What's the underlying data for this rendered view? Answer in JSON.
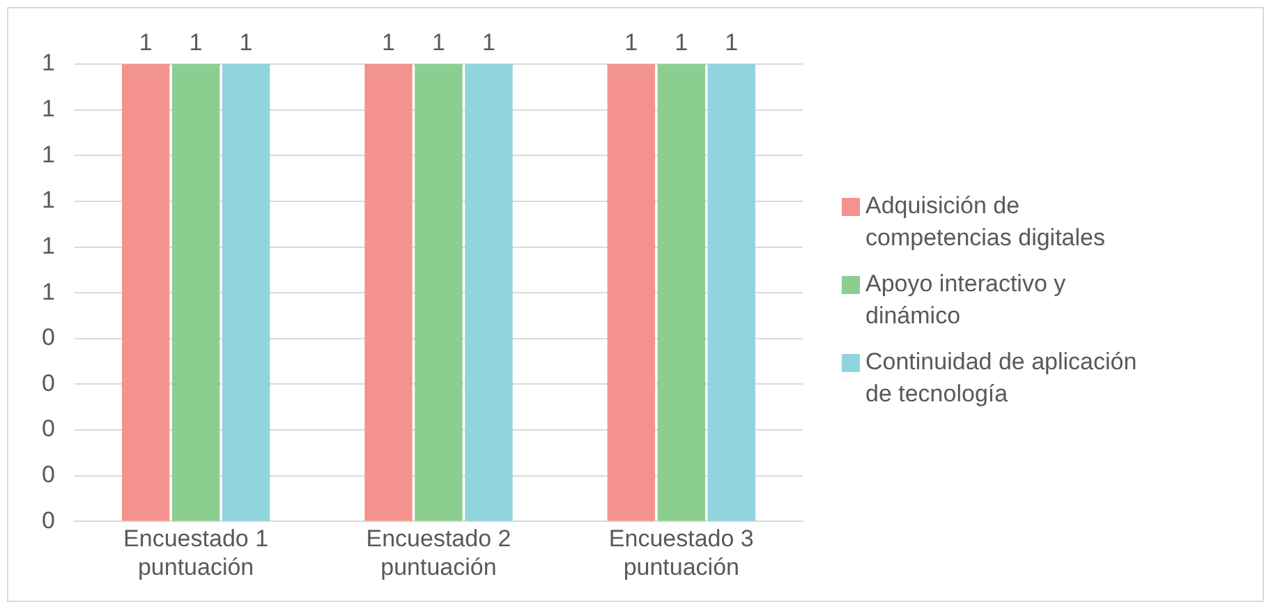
{
  "chart_data": {
    "type": "bar",
    "categories": [
      "Encuestado 1 puntuación",
      "Encuestado 2 puntuación",
      "Encuestado 3 puntuación"
    ],
    "series": [
      {
        "name": "Adquisición de competencias digitales",
        "color": "#f4938d",
        "values": [
          1,
          1,
          1
        ]
      },
      {
        "name": "Apoyo interactivo y dinámico",
        "color": "#8cce90",
        "values": [
          1,
          1,
          1
        ]
      },
      {
        "name": "Continuidad de aplicación de tecnología",
        "color": "#90d4dd",
        "values": [
          1,
          1,
          1
        ]
      }
    ],
    "ylim": [
      0,
      1
    ],
    "yticks": [
      {
        "value": 0,
        "label": "0"
      },
      {
        "value": 0.1,
        "label": "0"
      },
      {
        "value": 0.2,
        "label": "0"
      },
      {
        "value": 0.3,
        "label": "0"
      },
      {
        "value": 0.4,
        "label": "0"
      },
      {
        "value": 0.5,
        "label": "1"
      },
      {
        "value": 0.6,
        "label": "1"
      },
      {
        "value": 0.7,
        "label": "1"
      },
      {
        "value": 0.8,
        "label": "1"
      },
      {
        "value": 0.9,
        "label": "1"
      },
      {
        "value": 1,
        "label": "1"
      }
    ],
    "grid": "y",
    "legend": "right",
    "data_labels": true
  }
}
